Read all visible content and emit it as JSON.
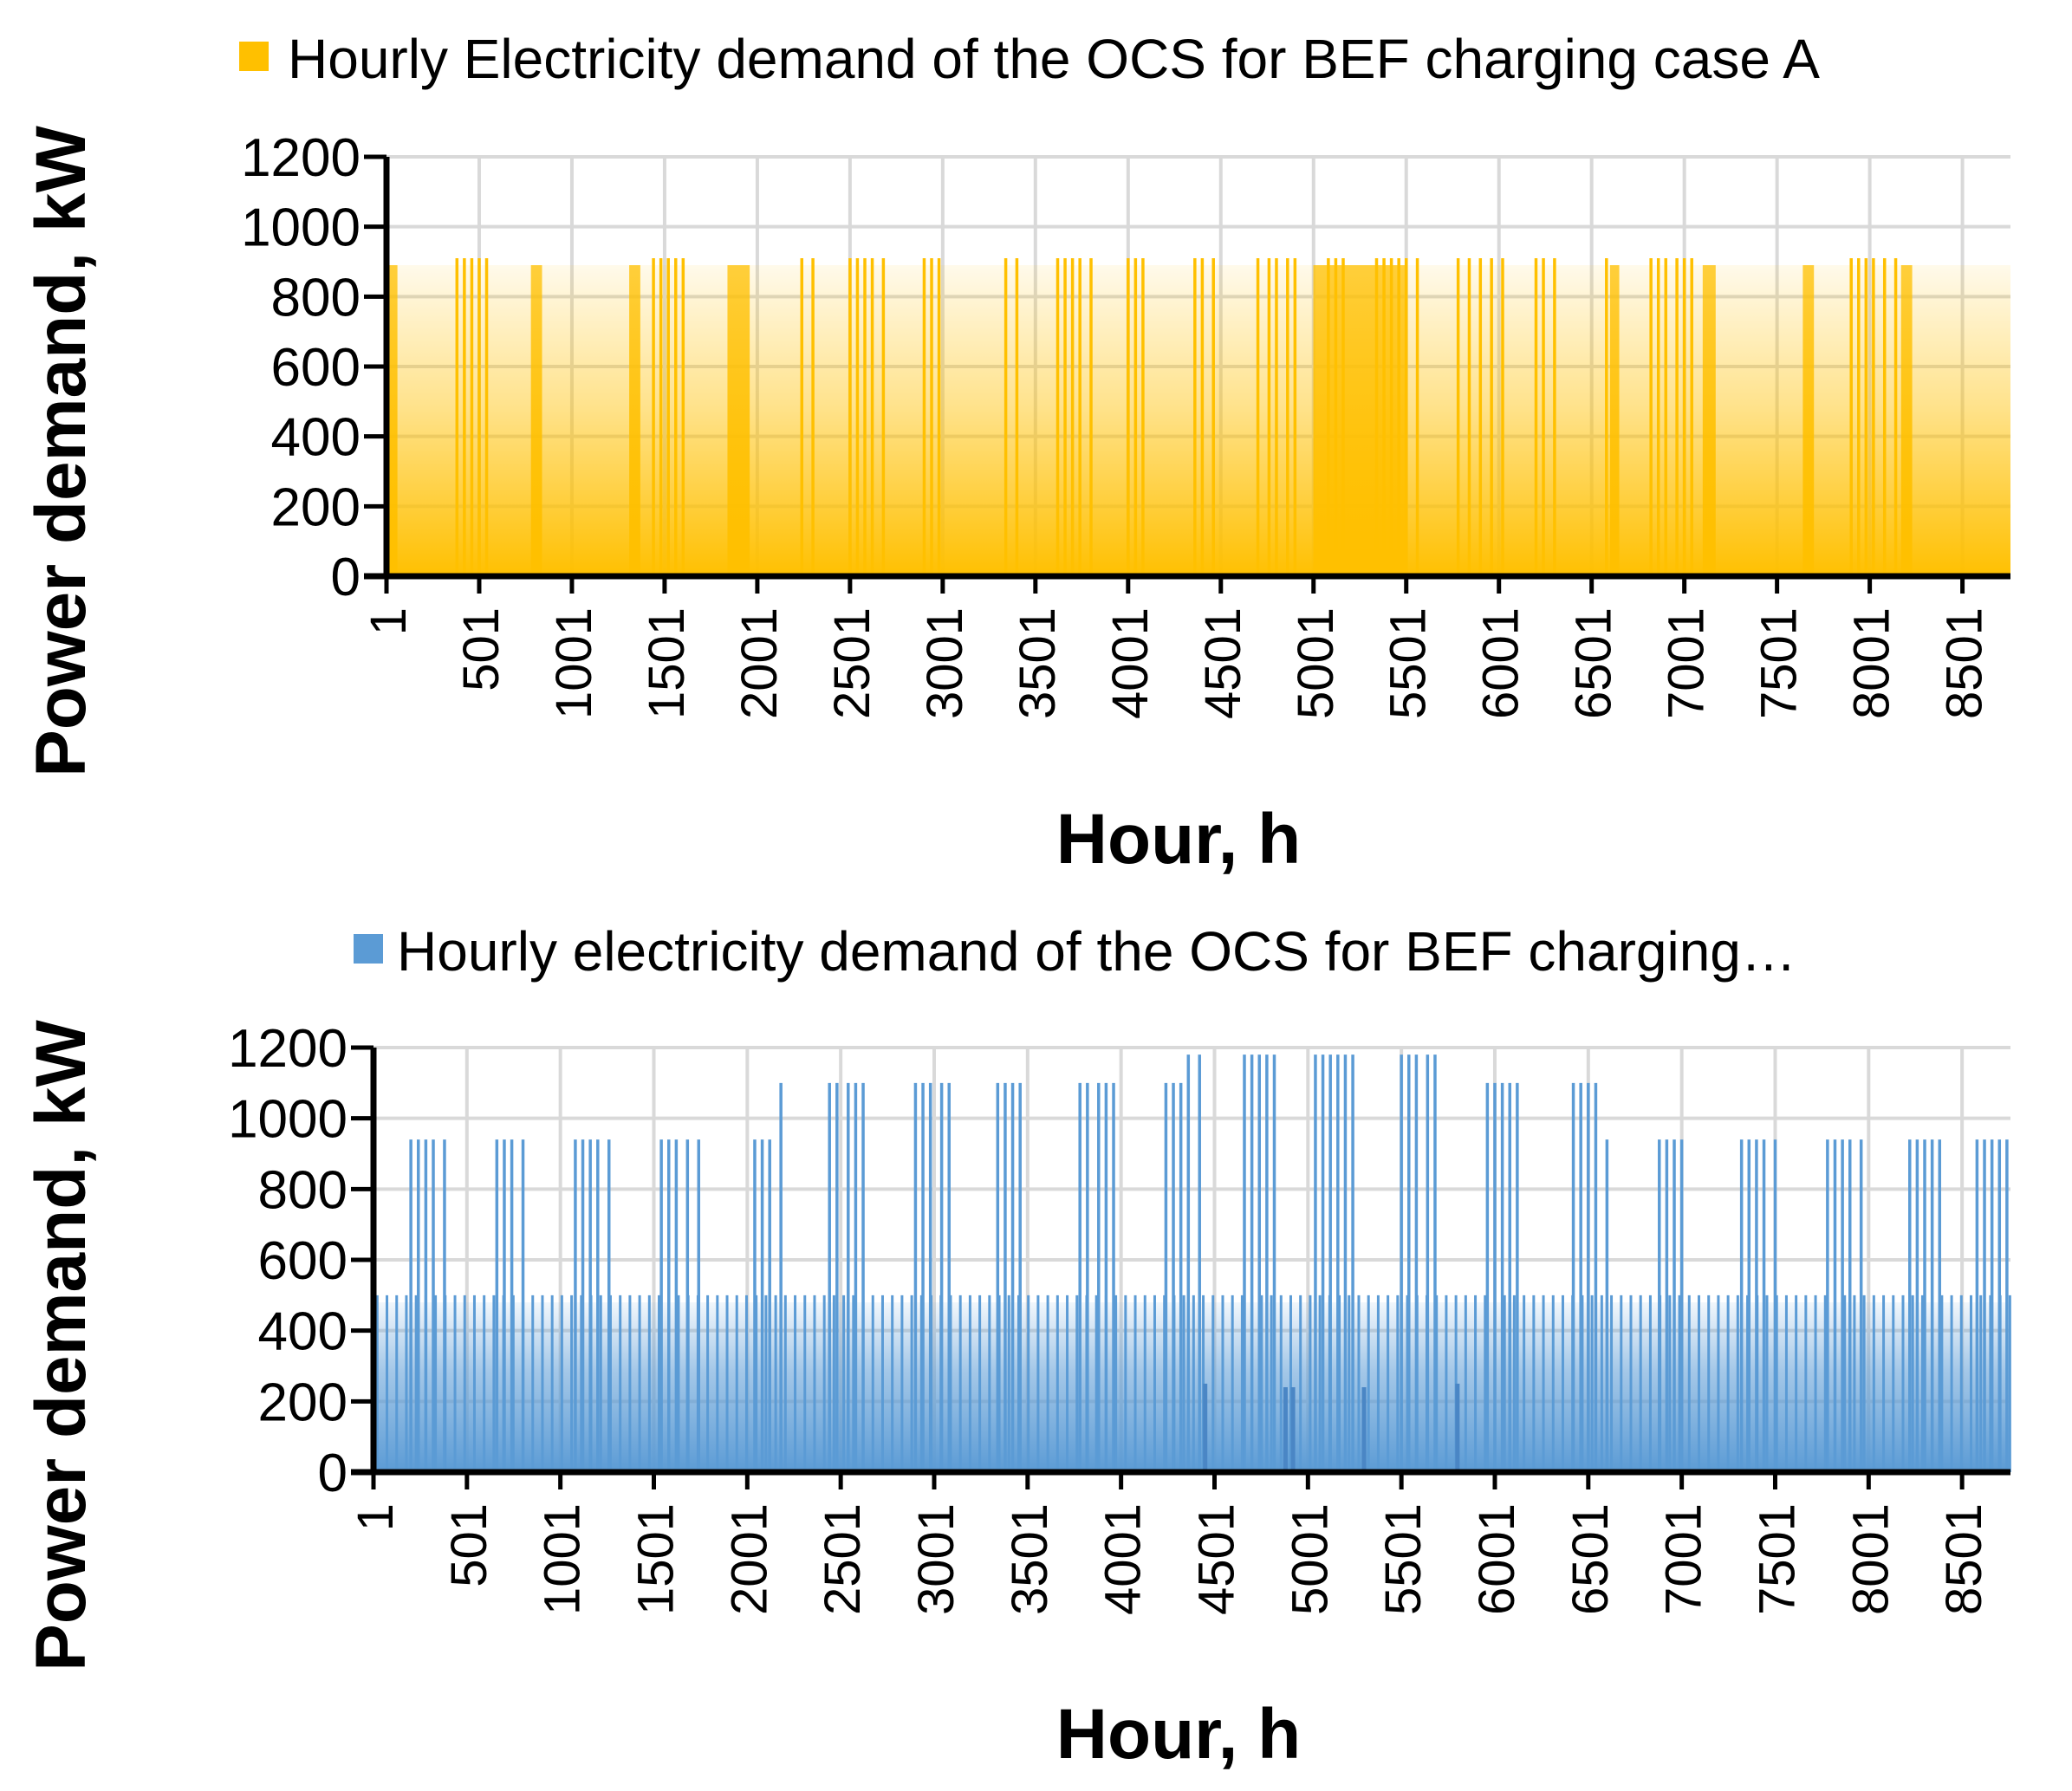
{
  "chart_data": [
    {
      "type": "bar",
      "legend": "Hourly Electricity demand of the OCS for BEF charging case A",
      "legend_color": "#FFC000",
      "xlabel": "Hour, h",
      "ylabel": "Power demand, kW",
      "ylim": [
        0,
        1200
      ],
      "xlim": [
        1,
        8760
      ],
      "yticks": [
        "0",
        "200",
        "400",
        "600",
        "800",
        "1000",
        "1200"
      ],
      "xticks": [
        "1",
        "501",
        "1001",
        "1501",
        "2001",
        "2501",
        "3001",
        "3501",
        "4001",
        "4501",
        "5001",
        "5501",
        "6001",
        "6501",
        "7001",
        "7501",
        "8001",
        "8501"
      ],
      "base_level": 890,
      "dense_blocks": [
        [
          1,
          60
        ],
        [
          780,
          840
        ],
        [
          1310,
          1370
        ],
        [
          1840,
          1960
        ],
        [
          5000,
          5500
        ],
        [
          6600,
          6650
        ],
        [
          7100,
          7170
        ],
        [
          7640,
          7700
        ],
        [
          8170,
          8230
        ]
      ],
      "spikes": [
        {
          "hour": 381,
          "value": 910
        },
        {
          "hour": 421,
          "value": 910
        },
        {
          "hour": 461,
          "value": 910
        },
        {
          "hour": 501,
          "value": 910
        },
        {
          "hour": 541,
          "value": 910
        },
        {
          "hour": 1441,
          "value": 910
        },
        {
          "hour": 1481,
          "value": 910
        },
        {
          "hour": 1521,
          "value": 910
        },
        {
          "hour": 1561,
          "value": 910
        },
        {
          "hour": 1601,
          "value": 910
        },
        {
          "hour": 2241,
          "value": 910
        },
        {
          "hour": 2301,
          "value": 910
        },
        {
          "hour": 2501,
          "value": 910
        },
        {
          "hour": 2541,
          "value": 910
        },
        {
          "hour": 2581,
          "value": 910
        },
        {
          "hour": 2621,
          "value": 910
        },
        {
          "hour": 2681,
          "value": 910
        },
        {
          "hour": 2901,
          "value": 910
        },
        {
          "hour": 2941,
          "value": 910
        },
        {
          "hour": 2981,
          "value": 910
        },
        {
          "hour": 3341,
          "value": 910
        },
        {
          "hour": 3401,
          "value": 910
        },
        {
          "hour": 3621,
          "value": 910
        },
        {
          "hour": 3661,
          "value": 910
        },
        {
          "hour": 3701,
          "value": 910
        },
        {
          "hour": 3741,
          "value": 910
        },
        {
          "hour": 3801,
          "value": 910
        },
        {
          "hour": 4001,
          "value": 910
        },
        {
          "hour": 4041,
          "value": 910
        },
        {
          "hour": 4081,
          "value": 910
        },
        {
          "hour": 4361,
          "value": 910
        },
        {
          "hour": 4401,
          "value": 910
        },
        {
          "hour": 4461,
          "value": 910
        },
        {
          "hour": 4701,
          "value": 910
        },
        {
          "hour": 4761,
          "value": 910
        },
        {
          "hour": 4801,
          "value": 910
        },
        {
          "hour": 4861,
          "value": 910
        },
        {
          "hour": 4901,
          "value": 910
        },
        {
          "hour": 5081,
          "value": 910
        },
        {
          "hour": 5121,
          "value": 910
        },
        {
          "hour": 5161,
          "value": 910
        },
        {
          "hour": 5341,
          "value": 910
        },
        {
          "hour": 5381,
          "value": 910
        },
        {
          "hour": 5421,
          "value": 910
        },
        {
          "hour": 5461,
          "value": 910
        },
        {
          "hour": 5501,
          "value": 910
        },
        {
          "hour": 5561,
          "value": 910
        },
        {
          "hour": 5781,
          "value": 910
        },
        {
          "hour": 5841,
          "value": 910
        },
        {
          "hour": 5901,
          "value": 910
        },
        {
          "hour": 5961,
          "value": 910
        },
        {
          "hour": 6021,
          "value": 910
        },
        {
          "hour": 6201,
          "value": 910
        },
        {
          "hour": 6241,
          "value": 910
        },
        {
          "hour": 6301,
          "value": 910
        },
        {
          "hour": 6581,
          "value": 910
        },
        {
          "hour": 6821,
          "value": 910
        },
        {
          "hour": 6861,
          "value": 910
        },
        {
          "hour": 6901,
          "value": 910
        },
        {
          "hour": 6961,
          "value": 910
        },
        {
          "hour": 7001,
          "value": 910
        },
        {
          "hour": 7041,
          "value": 910
        },
        {
          "hour": 7901,
          "value": 910
        },
        {
          "hour": 7941,
          "value": 910
        },
        {
          "hour": 7981,
          "value": 910
        },
        {
          "hour": 8021,
          "value": 910
        },
        {
          "hour": 8081,
          "value": 910
        },
        {
          "hour": 8141,
          "value": 910
        }
      ]
    },
    {
      "type": "bar",
      "legend": "Hourly electricity demand of the OCS for BEF charging…",
      "legend_color": "#5B9BD5",
      "xlabel": "Hour, h",
      "ylabel": "Power demand, kW",
      "ylim": [
        0,
        1200
      ],
      "xlim": [
        1,
        8760
      ],
      "yticks": [
        "0",
        "200",
        "400",
        "600",
        "800",
        "1000",
        "1200"
      ],
      "xticks": [
        "1",
        "501",
        "1001",
        "1501",
        "2001",
        "2501",
        "3001",
        "3501",
        "4001",
        "4501",
        "5001",
        "5501",
        "6001",
        "6501",
        "7001",
        "7501",
        "8001",
        "8501"
      ],
      "base_level": 480,
      "mid_level": 500,
      "mid_step": 52,
      "low_dips": [
        {
          "hour": 4451,
          "value": 250
        },
        {
          "hour": 4881,
          "value": 240
        },
        {
          "hour": 4921,
          "value": 240
        },
        {
          "hour": 5301,
          "value": 240
        },
        {
          "hour": 5801,
          "value": 250
        }
      ],
      "spikes": [
        {
          "hour": 201,
          "value": 940
        },
        {
          "hour": 241,
          "value": 940
        },
        {
          "hour": 281,
          "value": 940
        },
        {
          "hour": 321,
          "value": 940
        },
        {
          "hour": 381,
          "value": 940
        },
        {
          "hour": 661,
          "value": 940
        },
        {
          "hour": 701,
          "value": 940
        },
        {
          "hour": 741,
          "value": 940
        },
        {
          "hour": 801,
          "value": 940
        },
        {
          "hour": 1081,
          "value": 940
        },
        {
          "hour": 1121,
          "value": 940
        },
        {
          "hour": 1161,
          "value": 940
        },
        {
          "hour": 1201,
          "value": 940
        },
        {
          "hour": 1261,
          "value": 940
        },
        {
          "hour": 1541,
          "value": 940
        },
        {
          "hour": 1581,
          "value": 940
        },
        {
          "hour": 1621,
          "value": 940
        },
        {
          "hour": 1681,
          "value": 940
        },
        {
          "hour": 1741,
          "value": 940
        },
        {
          "hour": 2041,
          "value": 940
        },
        {
          "hour": 2081,
          "value": 940
        },
        {
          "hour": 2121,
          "value": 940
        },
        {
          "hour": 2181,
          "value": 1100
        },
        {
          "hour": 2441,
          "value": 1100
        },
        {
          "hour": 2481,
          "value": 1100
        },
        {
          "hour": 2541,
          "value": 1100
        },
        {
          "hour": 2581,
          "value": 1100
        },
        {
          "hour": 2621,
          "value": 1100
        },
        {
          "hour": 2901,
          "value": 1100
        },
        {
          "hour": 2941,
          "value": 1100
        },
        {
          "hour": 2981,
          "value": 1100
        },
        {
          "hour": 3041,
          "value": 1100
        },
        {
          "hour": 3081,
          "value": 1100
        },
        {
          "hour": 3341,
          "value": 1100
        },
        {
          "hour": 3381,
          "value": 1100
        },
        {
          "hour": 3421,
          "value": 1100
        },
        {
          "hour": 3461,
          "value": 1100
        },
        {
          "hour": 3781,
          "value": 1100
        },
        {
          "hour": 3821,
          "value": 1100
        },
        {
          "hour": 3881,
          "value": 1100
        },
        {
          "hour": 3921,
          "value": 1100
        },
        {
          "hour": 3961,
          "value": 1100
        },
        {
          "hour": 4241,
          "value": 1100
        },
        {
          "hour": 4281,
          "value": 1100
        },
        {
          "hour": 4321,
          "value": 1100
        },
        {
          "hour": 4361,
          "value": 1180
        },
        {
          "hour": 4421,
          "value": 1180
        },
        {
          "hour": 4661,
          "value": 1180
        },
        {
          "hour": 4701,
          "value": 1180
        },
        {
          "hour": 4741,
          "value": 1180
        },
        {
          "hour": 4781,
          "value": 1180
        },
        {
          "hour": 4821,
          "value": 1180
        },
        {
          "hour": 5041,
          "value": 1180
        },
        {
          "hour": 5081,
          "value": 1180
        },
        {
          "hour": 5121,
          "value": 1180
        },
        {
          "hour": 5161,
          "value": 1180
        },
        {
          "hour": 5201,
          "value": 1180
        },
        {
          "hour": 5241,
          "value": 1180
        },
        {
          "hour": 5501,
          "value": 1180
        },
        {
          "hour": 5541,
          "value": 1180
        },
        {
          "hour": 5581,
          "value": 1180
        },
        {
          "hour": 5641,
          "value": 1180
        },
        {
          "hour": 5681,
          "value": 1180
        },
        {
          "hour": 5961,
          "value": 1100
        },
        {
          "hour": 6001,
          "value": 1100
        },
        {
          "hour": 6041,
          "value": 1100
        },
        {
          "hour": 6081,
          "value": 1100
        },
        {
          "hour": 6121,
          "value": 1100
        },
        {
          "hour": 6421,
          "value": 1100
        },
        {
          "hour": 6461,
          "value": 1100
        },
        {
          "hour": 6501,
          "value": 1100
        },
        {
          "hour": 6541,
          "value": 1100
        },
        {
          "hour": 6601,
          "value": 940
        },
        {
          "hour": 6881,
          "value": 940
        },
        {
          "hour": 6921,
          "value": 940
        },
        {
          "hour": 6961,
          "value": 940
        },
        {
          "hour": 7001,
          "value": 940
        },
        {
          "hour": 7321,
          "value": 940
        },
        {
          "hour": 7361,
          "value": 940
        },
        {
          "hour": 7401,
          "value": 940
        },
        {
          "hour": 7441,
          "value": 940
        },
        {
          "hour": 7501,
          "value": 940
        },
        {
          "hour": 7781,
          "value": 940
        },
        {
          "hour": 7821,
          "value": 940
        },
        {
          "hour": 7861,
          "value": 940
        },
        {
          "hour": 7901,
          "value": 940
        },
        {
          "hour": 7961,
          "value": 940
        },
        {
          "hour": 8221,
          "value": 940
        },
        {
          "hour": 8261,
          "value": 940
        },
        {
          "hour": 8301,
          "value": 940
        },
        {
          "hour": 8341,
          "value": 940
        },
        {
          "hour": 8381,
          "value": 940
        },
        {
          "hour": 8581,
          "value": 940
        },
        {
          "hour": 8621,
          "value": 940
        },
        {
          "hour": 8661,
          "value": 940
        },
        {
          "hour": 8701,
          "value": 940
        },
        {
          "hour": 8741,
          "value": 940
        }
      ]
    }
  ]
}
